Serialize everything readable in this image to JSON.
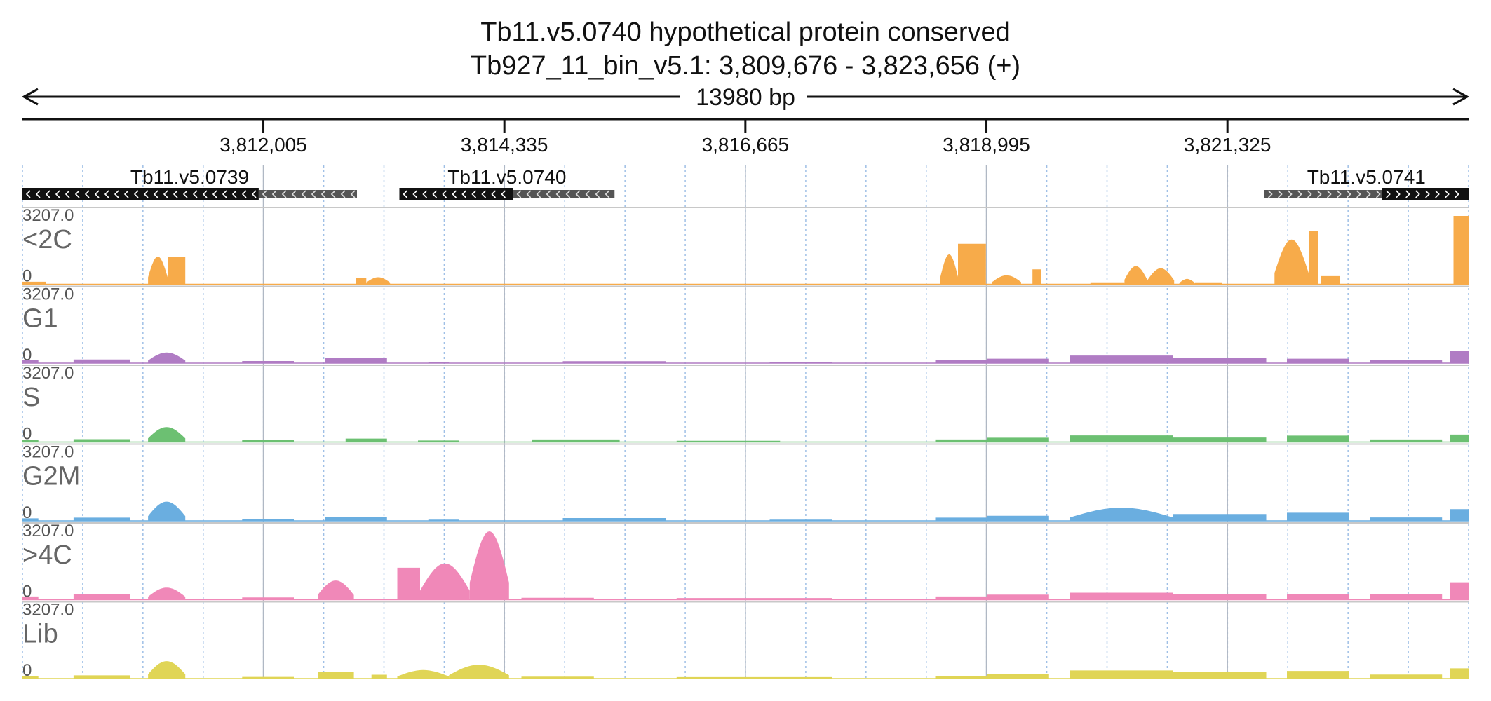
{
  "header": {
    "title_line1": "Tb11.v5.0740  hypothetical protein  conserved",
    "title_line2": "Tb927_11_bin_v5.1: 3,809,676 - 3,823,656 (+)",
    "span_label": "13980 bp"
  },
  "chart_data": {
    "type": "area",
    "region": {
      "chromosome": "Tb927_11_bin_v5.1",
      "start": 3809676,
      "end": 3823656,
      "strand": "+"
    },
    "axis": {
      "ticks": [
        3812005,
        3814335,
        3816665,
        3818995,
        3821325
      ],
      "tick_labels": [
        "3,812,005",
        "3,814,335",
        "3,816,665",
        "3,818,995",
        "3,821,325"
      ],
      "grid": true
    },
    "genes": [
      {
        "name": "Tb11.v5.0739",
        "strand": "-",
        "cds": [
          3809676,
          3811960
        ],
        "utr": [
          3811960,
          3812910
        ]
      },
      {
        "name": "Tb11.v5.0740",
        "strand": "-",
        "cds": [
          3813320,
          3814420
        ],
        "utr": [
          3814420,
          3815400
        ]
      },
      {
        "name": "Tb11.v5.0741",
        "strand": "+",
        "utr": [
          3821680,
          3822820
        ],
        "cds": [
          3822820,
          3823656
        ]
      }
    ],
    "ymax_label": "3207.0",
    "ymin_label": "0",
    "ylim": [
      0,
      3207
    ],
    "tracks": [
      {
        "name": "<2C",
        "color": "#f7ab4a",
        "regions": [
          {
            "s": 3809676,
            "e": 3809900,
            "h": 120,
            "shape": "flat"
          },
          {
            "s": 3810890,
            "e": 3811080,
            "h": 1300,
            "shape": "hump"
          },
          {
            "s": 3811080,
            "e": 3811250,
            "h": 1300,
            "shape": "flat"
          },
          {
            "s": 3812900,
            "e": 3813000,
            "h": 280,
            "shape": "flat"
          },
          {
            "s": 3813000,
            "e": 3813230,
            "h": 330,
            "shape": "hump"
          },
          {
            "s": 3818550,
            "e": 3818720,
            "h": 1400,
            "shape": "hump"
          },
          {
            "s": 3818720,
            "e": 3818990,
            "h": 1900,
            "shape": "flat"
          },
          {
            "s": 3819050,
            "e": 3819330,
            "h": 420,
            "shape": "hump"
          },
          {
            "s": 3819440,
            "e": 3819520,
            "h": 700,
            "shape": "flat"
          },
          {
            "s": 3820000,
            "e": 3820330,
            "h": 90,
            "shape": "flat"
          },
          {
            "s": 3820330,
            "e": 3820550,
            "h": 850,
            "shape": "hump"
          },
          {
            "s": 3820550,
            "e": 3820810,
            "h": 750,
            "shape": "hump"
          },
          {
            "s": 3820860,
            "e": 3821010,
            "h": 250,
            "shape": "hump"
          },
          {
            "s": 3821010,
            "e": 3821270,
            "h": 90,
            "shape": "flat"
          },
          {
            "s": 3821780,
            "e": 3822110,
            "h": 2100,
            "shape": "hump"
          },
          {
            "s": 3822110,
            "e": 3822200,
            "h": 2500,
            "shape": "flat"
          },
          {
            "s": 3822230,
            "e": 3822410,
            "h": 380,
            "shape": "flat"
          },
          {
            "s": 3823510,
            "e": 3823656,
            "h": 3207,
            "shape": "flat"
          }
        ]
      },
      {
        "name": "G1",
        "color": "#b07cc4",
        "regions": [
          {
            "s": 3809676,
            "e": 3809830,
            "h": 140,
            "shape": "flat"
          },
          {
            "s": 3810170,
            "e": 3810720,
            "h": 170,
            "shape": "flat"
          },
          {
            "s": 3810890,
            "e": 3811250,
            "h": 500,
            "shape": "hump"
          },
          {
            "s": 3811800,
            "e": 3812300,
            "h": 100,
            "shape": "flat"
          },
          {
            "s": 3812600,
            "e": 3813200,
            "h": 260,
            "shape": "flat"
          },
          {
            "s": 3813600,
            "e": 3813800,
            "h": 60,
            "shape": "flat"
          },
          {
            "s": 3814900,
            "e": 3815900,
            "h": 90,
            "shape": "flat"
          },
          {
            "s": 3816900,
            "e": 3817500,
            "h": 60,
            "shape": "flat"
          },
          {
            "s": 3818500,
            "e": 3819000,
            "h": 160,
            "shape": "flat"
          },
          {
            "s": 3819000,
            "e": 3819600,
            "h": 210,
            "shape": "flat"
          },
          {
            "s": 3819800,
            "e": 3820800,
            "h": 360,
            "shape": "flat"
          },
          {
            "s": 3820800,
            "e": 3821700,
            "h": 230,
            "shape": "flat"
          },
          {
            "s": 3821900,
            "e": 3822500,
            "h": 210,
            "shape": "flat"
          },
          {
            "s": 3822700,
            "e": 3823400,
            "h": 130,
            "shape": "flat"
          },
          {
            "s": 3823480,
            "e": 3823656,
            "h": 560,
            "shape": "flat"
          }
        ]
      },
      {
        "name": "S",
        "color": "#6cc072",
        "regions": [
          {
            "s": 3809676,
            "e": 3809830,
            "h": 110,
            "shape": "flat"
          },
          {
            "s": 3810170,
            "e": 3810720,
            "h": 130,
            "shape": "flat"
          },
          {
            "s": 3810890,
            "e": 3811250,
            "h": 700,
            "shape": "hump"
          },
          {
            "s": 3811800,
            "e": 3812300,
            "h": 90,
            "shape": "flat"
          },
          {
            "s": 3812800,
            "e": 3813200,
            "h": 160,
            "shape": "flat"
          },
          {
            "s": 3813500,
            "e": 3813900,
            "h": 70,
            "shape": "flat"
          },
          {
            "s": 3814600,
            "e": 3815450,
            "h": 120,
            "shape": "flat"
          },
          {
            "s": 3816000,
            "e": 3817000,
            "h": 60,
            "shape": "flat"
          },
          {
            "s": 3818500,
            "e": 3819000,
            "h": 120,
            "shape": "flat"
          },
          {
            "s": 3819000,
            "e": 3819600,
            "h": 200,
            "shape": "flat"
          },
          {
            "s": 3819800,
            "e": 3820800,
            "h": 310,
            "shape": "flat"
          },
          {
            "s": 3820800,
            "e": 3821700,
            "h": 210,
            "shape": "flat"
          },
          {
            "s": 3821900,
            "e": 3822500,
            "h": 300,
            "shape": "flat"
          },
          {
            "s": 3822700,
            "e": 3823400,
            "h": 120,
            "shape": "flat"
          },
          {
            "s": 3823480,
            "e": 3823656,
            "h": 350,
            "shape": "flat"
          }
        ]
      },
      {
        "name": "G2M",
        "color": "#6aaee0",
        "regions": [
          {
            "s": 3809676,
            "e": 3809830,
            "h": 120,
            "shape": "flat"
          },
          {
            "s": 3810170,
            "e": 3810720,
            "h": 150,
            "shape": "flat"
          },
          {
            "s": 3810890,
            "e": 3811250,
            "h": 900,
            "shape": "hump"
          },
          {
            "s": 3811800,
            "e": 3812300,
            "h": 90,
            "shape": "flat"
          },
          {
            "s": 3812600,
            "e": 3813200,
            "h": 190,
            "shape": "flat"
          },
          {
            "s": 3813600,
            "e": 3813900,
            "h": 60,
            "shape": "flat"
          },
          {
            "s": 3814900,
            "e": 3815900,
            "h": 130,
            "shape": "flat"
          },
          {
            "s": 3816900,
            "e": 3817500,
            "h": 60,
            "shape": "flat"
          },
          {
            "s": 3818500,
            "e": 3819000,
            "h": 150,
            "shape": "flat"
          },
          {
            "s": 3819000,
            "e": 3819600,
            "h": 240,
            "shape": "flat"
          },
          {
            "s": 3819800,
            "e": 3820800,
            "h": 620,
            "shape": "hump"
          },
          {
            "s": 3820800,
            "e": 3821700,
            "h": 320,
            "shape": "flat"
          },
          {
            "s": 3821900,
            "e": 3822500,
            "h": 380,
            "shape": "flat"
          },
          {
            "s": 3822700,
            "e": 3823400,
            "h": 160,
            "shape": "flat"
          },
          {
            "s": 3823480,
            "e": 3823656,
            "h": 550,
            "shape": "flat"
          }
        ]
      },
      {
        "name": ">4C",
        "color": "#f088b8",
        "regions": [
          {
            "s": 3809676,
            "e": 3809830,
            "h": 150,
            "shape": "flat"
          },
          {
            "s": 3810170,
            "e": 3810720,
            "h": 280,
            "shape": "flat"
          },
          {
            "s": 3810890,
            "e": 3811250,
            "h": 570,
            "shape": "hump"
          },
          {
            "s": 3811800,
            "e": 3812300,
            "h": 110,
            "shape": "flat"
          },
          {
            "s": 3812530,
            "e": 3812880,
            "h": 900,
            "shape": "hump"
          },
          {
            "s": 3813300,
            "e": 3813520,
            "h": 1500,
            "shape": "flat"
          },
          {
            "s": 3813520,
            "e": 3814000,
            "h": 1700,
            "shape": "hump"
          },
          {
            "s": 3814000,
            "e": 3814380,
            "h": 3207,
            "shape": "hump"
          },
          {
            "s": 3814500,
            "e": 3815200,
            "h": 90,
            "shape": "flat"
          },
          {
            "s": 3816000,
            "e": 3817500,
            "h": 80,
            "shape": "flat"
          },
          {
            "s": 3818500,
            "e": 3819000,
            "h": 150,
            "shape": "flat"
          },
          {
            "s": 3819000,
            "e": 3819600,
            "h": 240,
            "shape": "flat"
          },
          {
            "s": 3819800,
            "e": 3820800,
            "h": 330,
            "shape": "flat"
          },
          {
            "s": 3820800,
            "e": 3821700,
            "h": 280,
            "shape": "flat"
          },
          {
            "s": 3821900,
            "e": 3822500,
            "h": 260,
            "shape": "flat"
          },
          {
            "s": 3822700,
            "e": 3823400,
            "h": 250,
            "shape": "flat"
          },
          {
            "s": 3823480,
            "e": 3823656,
            "h": 820,
            "shape": "flat"
          }
        ]
      },
      {
        "name": "Lib",
        "color": "#e0d556",
        "regions": [
          {
            "s": 3809676,
            "e": 3809830,
            "h": 110,
            "shape": "flat"
          },
          {
            "s": 3810170,
            "e": 3810720,
            "h": 150,
            "shape": "flat"
          },
          {
            "s": 3810890,
            "e": 3811250,
            "h": 820,
            "shape": "hump"
          },
          {
            "s": 3811800,
            "e": 3812300,
            "h": 80,
            "shape": "flat"
          },
          {
            "s": 3812530,
            "e": 3812880,
            "h": 320,
            "shape": "flat"
          },
          {
            "s": 3813050,
            "e": 3813200,
            "h": 180,
            "shape": "flat"
          },
          {
            "s": 3813300,
            "e": 3813800,
            "h": 400,
            "shape": "hump"
          },
          {
            "s": 3813800,
            "e": 3814380,
            "h": 650,
            "shape": "hump"
          },
          {
            "s": 3814500,
            "e": 3815200,
            "h": 90,
            "shape": "flat"
          },
          {
            "s": 3816000,
            "e": 3817500,
            "h": 70,
            "shape": "flat"
          },
          {
            "s": 3818500,
            "e": 3819000,
            "h": 130,
            "shape": "flat"
          },
          {
            "s": 3819000,
            "e": 3819600,
            "h": 220,
            "shape": "flat"
          },
          {
            "s": 3819800,
            "e": 3820800,
            "h": 380,
            "shape": "flat"
          },
          {
            "s": 3820800,
            "e": 3821700,
            "h": 300,
            "shape": "flat"
          },
          {
            "s": 3821900,
            "e": 3822500,
            "h": 360,
            "shape": "flat"
          },
          {
            "s": 3822700,
            "e": 3823400,
            "h": 190,
            "shape": "flat"
          },
          {
            "s": 3823480,
            "e": 3823656,
            "h": 480,
            "shape": "flat"
          }
        ]
      }
    ]
  }
}
